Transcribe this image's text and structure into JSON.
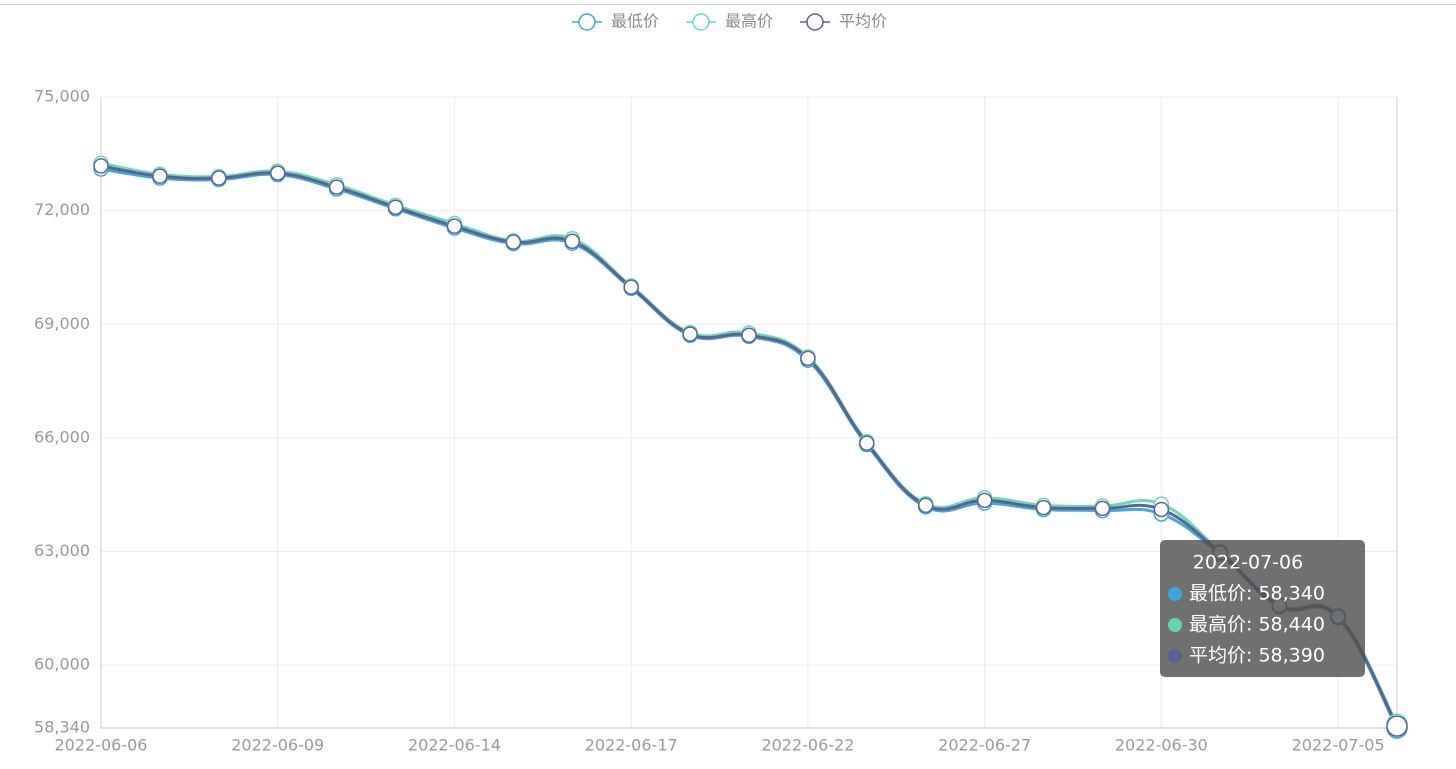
{
  "chart_data": {
    "type": "line",
    "categories": [
      "2022-06-06",
      null,
      null,
      "2022-06-09",
      null,
      null,
      "2022-06-14",
      null,
      null,
      "2022-06-17",
      null,
      null,
      "2022-06-22",
      null,
      null,
      "2022-06-27",
      null,
      null,
      "2022-06-30",
      null,
      null,
      "2022-07-05",
      "2022-07-06"
    ],
    "series": [
      {
        "name": "最低价",
        "color": "#40a8dd",
        "values": [
          73100,
          72860,
          72820,
          72950,
          72570,
          72050,
          71540,
          71130,
          71140,
          69950,
          68710,
          68680,
          68050,
          65820,
          64180,
          64280,
          64110,
          64080,
          63990,
          62930,
          61540,
          61250,
          58340
        ]
      },
      {
        "name": "最高价",
        "color": "#6bd8b9",
        "values": [
          73250,
          72960,
          72900,
          73040,
          72680,
          72140,
          71660,
          71200,
          71260,
          70010,
          68780,
          68770,
          68140,
          65900,
          64260,
          64420,
          64220,
          64200,
          64250,
          63000,
          61600,
          61310,
          58440
        ]
      },
      {
        "name": "平均价",
        "color": "#5c6391",
        "values": [
          73180,
          72910,
          72860,
          72990,
          72620,
          72090,
          71590,
          71170,
          71190,
          69980,
          68740,
          68710,
          68100,
          65860,
          64220,
          64350,
          64160,
          64140,
          64110,
          62970,
          61570,
          61280,
          58390
        ]
      }
    ],
    "ylim": [
      58340,
      75000
    ],
    "yticks": [
      {
        "value": 58340,
        "label": "58,340"
      },
      {
        "value": 60000,
        "label": "60,000"
      },
      {
        "value": 63000,
        "label": "63,000"
      },
      {
        "value": 66000,
        "label": "66,000"
      },
      {
        "value": 69000,
        "label": "69,000"
      },
      {
        "value": 72000,
        "label": "72,000"
      },
      {
        "value": 75000,
        "label": "75,000"
      }
    ],
    "grid": true,
    "legend_position": "top",
    "tooltip": {
      "rows": [
        "最低价: 58,340",
        "最高价: 58,440",
        "平均价: 58,390"
      ],
      "colors": [
        "#3aa6de",
        "#63d4b0",
        "#56619a"
      ]
    }
  }
}
